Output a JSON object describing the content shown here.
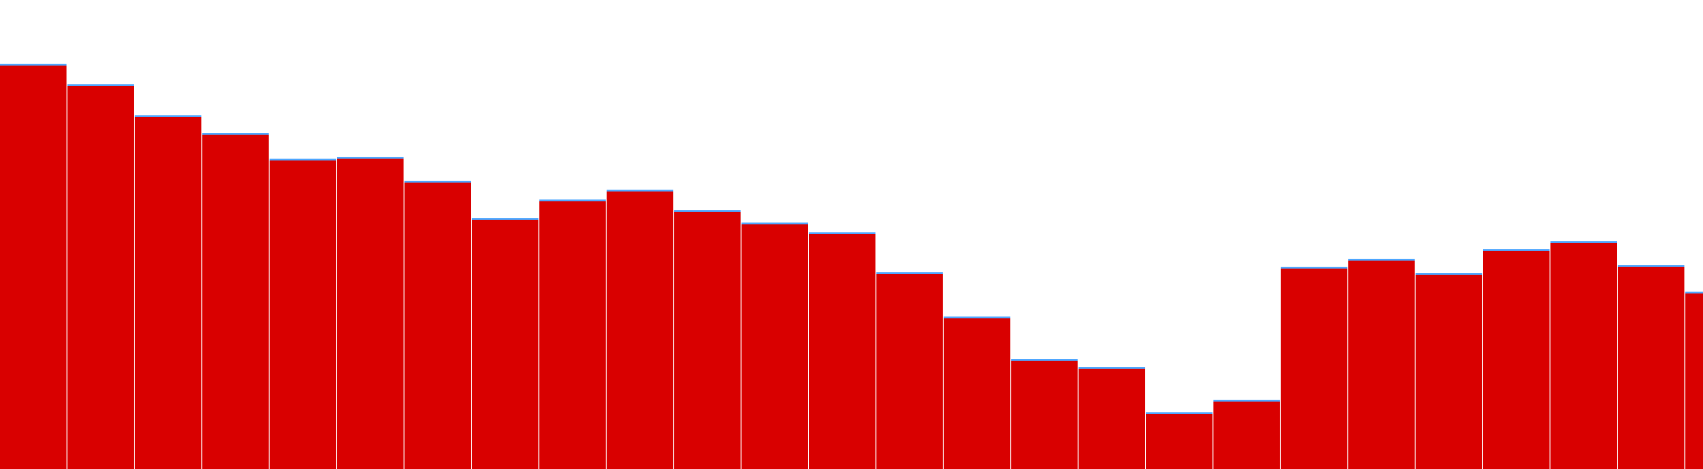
{
  "chart_data": {
    "type": "bar",
    "categories": [
      "",
      "",
      "",
      "",
      "",
      "",
      "",
      "",
      "",
      "",
      "",
      "",
      "",
      "",
      "",
      "",
      "",
      "",
      "",
      "",
      "",
      "",
      "",
      "",
      "",
      ""
    ],
    "series": [
      {
        "values": [
          456,
          433,
          398,
          378,
          349,
          351,
          324,
          282,
          303,
          314,
          291,
          277,
          266,
          221,
          171,
          123,
          114,
          63,
          77,
          227,
          236,
          220,
          247,
          256,
          229,
          199
        ],
        "color": "#d90000",
        "cap_color": "#4da6ff"
      }
    ],
    "ylim": [
      0,
      529
    ],
    "grid": false,
    "legend": "none"
  }
}
